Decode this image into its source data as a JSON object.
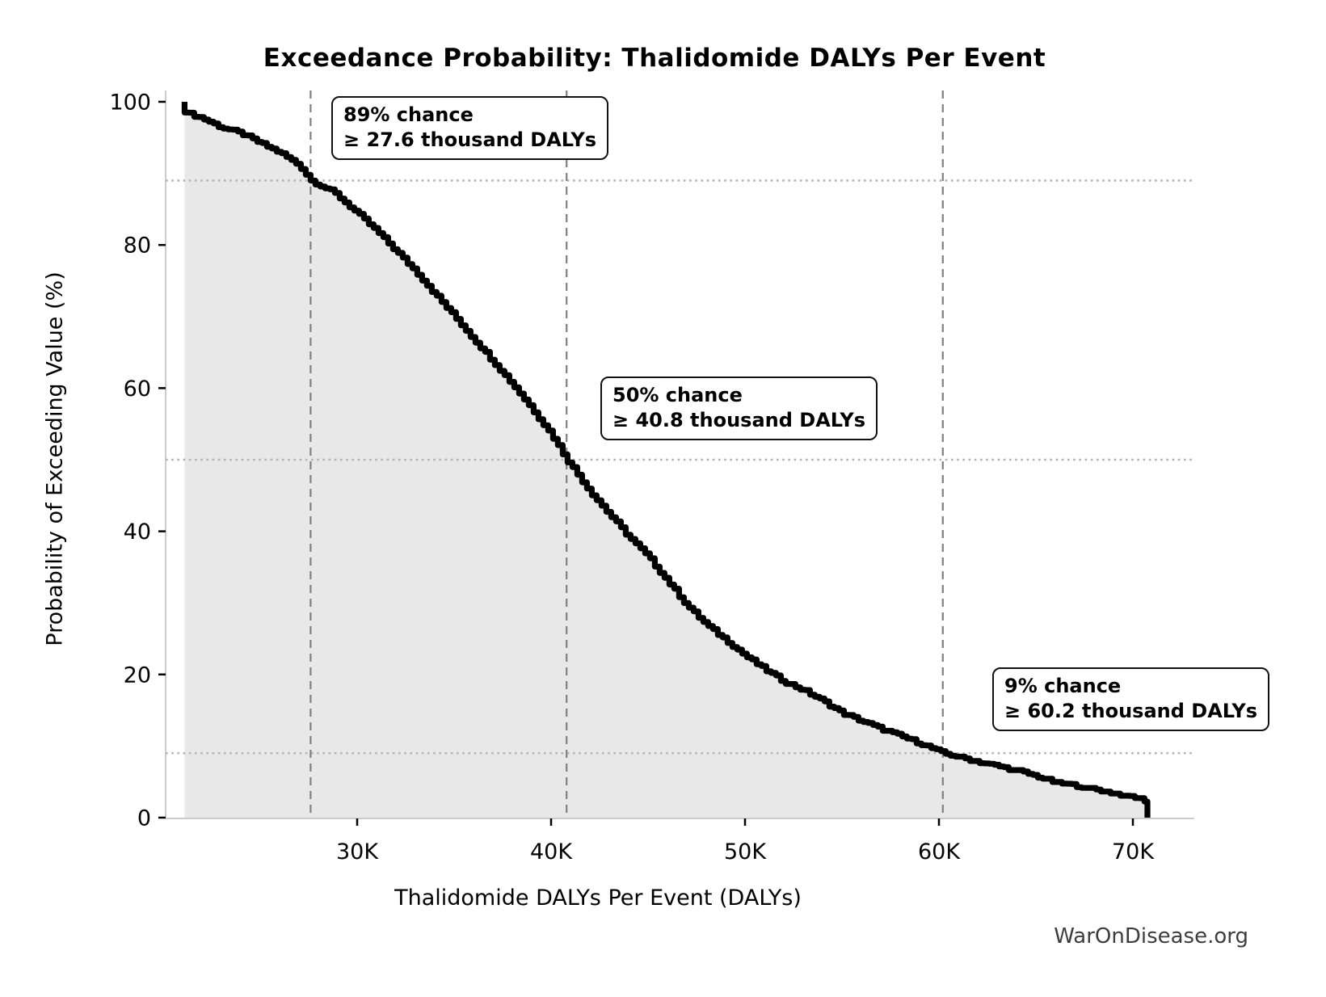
{
  "chart_data": {
    "type": "area",
    "title": "Exceedance Probability: Thalidomide DALYs Per Event",
    "xlabel": "Thalidomide DALYs Per Event (DALYs)",
    "ylabel": "Probability of Exceeding Value (%)",
    "watermark": "WarOnDisease.org",
    "x_unit": "thousand DALYs",
    "xlim": [
      20.1,
      73.2
    ],
    "ylim": [
      0,
      100
    ],
    "grid": "reference lines only",
    "legend": "none",
    "xticks": [
      {
        "value": 30,
        "label": "30K"
      },
      {
        "value": 40,
        "label": "40K"
      },
      {
        "value": 50,
        "label": "50K"
      },
      {
        "value": 60,
        "label": "60K"
      },
      {
        "value": 70,
        "label": "70K"
      }
    ],
    "yticks": [
      {
        "value": 0,
        "label": "0"
      },
      {
        "value": 20,
        "label": "20"
      },
      {
        "value": 40,
        "label": "40"
      },
      {
        "value": 60,
        "label": "60"
      },
      {
        "value": 80,
        "label": "80"
      },
      {
        "value": 100,
        "label": "100"
      }
    ],
    "series": [
      {
        "name": "exceedance-probability-curve",
        "style": "stepped survival curve, black, filled light gray below",
        "points": [
          [
            21.1,
            100
          ],
          [
            21.15,
            98.5
          ],
          [
            22,
            97.7
          ],
          [
            23,
            96.4
          ],
          [
            24,
            95.6
          ],
          [
            25,
            94.2
          ],
          [
            26,
            92.9
          ],
          [
            27,
            91.1
          ],
          [
            27.6,
            89
          ],
          [
            28.8,
            87.3
          ],
          [
            30,
            84.4
          ],
          [
            31,
            81.9
          ],
          [
            32,
            79.1
          ],
          [
            33,
            76.3
          ],
          [
            34,
            73.1
          ],
          [
            35,
            70.0
          ],
          [
            36,
            66.8
          ],
          [
            37,
            63.7
          ],
          [
            38,
            60.5
          ],
          [
            39,
            57.1
          ],
          [
            40,
            53.5
          ],
          [
            40.8,
            50
          ],
          [
            42,
            45.5
          ],
          [
            43,
            42.3
          ],
          [
            44,
            39.2
          ],
          [
            45,
            36.4
          ],
          [
            46,
            33.0
          ],
          [
            47,
            29.6
          ],
          [
            48,
            26.9
          ],
          [
            49,
            24.8
          ],
          [
            50,
            22.6
          ],
          [
            51,
            20.7
          ],
          [
            52,
            19.0
          ],
          [
            53,
            17.8
          ],
          [
            54,
            16.3
          ],
          [
            55,
            14.6
          ],
          [
            56,
            13.5
          ],
          [
            57,
            12.4
          ],
          [
            58,
            11.4
          ],
          [
            59,
            10.4
          ],
          [
            60.2,
            9
          ],
          [
            61,
            8.5
          ],
          [
            62,
            7.8
          ],
          [
            63,
            7.2
          ],
          [
            64,
            6.6
          ],
          [
            65,
            5.8
          ],
          [
            66,
            4.9
          ],
          [
            67,
            4.5
          ],
          [
            68,
            4.0
          ],
          [
            69,
            3.4
          ],
          [
            70,
            2.9
          ],
          [
            70.7,
            2.3
          ],
          [
            70.75,
            0
          ]
        ]
      }
    ],
    "reference_lines": {
      "vertical_dashed_x": [
        27.6,
        40.8,
        60.2
      ],
      "horizontal_dotted_probability_pct": [
        89,
        50,
        9
      ]
    },
    "annotations": [
      {
        "chance": "89% chance",
        "threshold": "≥ 27.6 thousand DALYs",
        "x": 27.6,
        "probability_pct": 89
      },
      {
        "chance": "50% chance",
        "threshold": "≥ 40.8 thousand DALYs",
        "x": 40.8,
        "probability_pct": 50
      },
      {
        "chance": "9% chance",
        "threshold": "≥ 60.2 thousand DALYs",
        "x": 60.2,
        "probability_pct": 9
      }
    ],
    "colors": {
      "curve": "#000000",
      "fill": "#e8e8e8",
      "dashed_line": "#808080",
      "dotted_line": "#b3b3b3",
      "spine": "#cccccc",
      "tick": "#000000",
      "text": "#000000",
      "watermark": "#3d3d3d"
    }
  }
}
